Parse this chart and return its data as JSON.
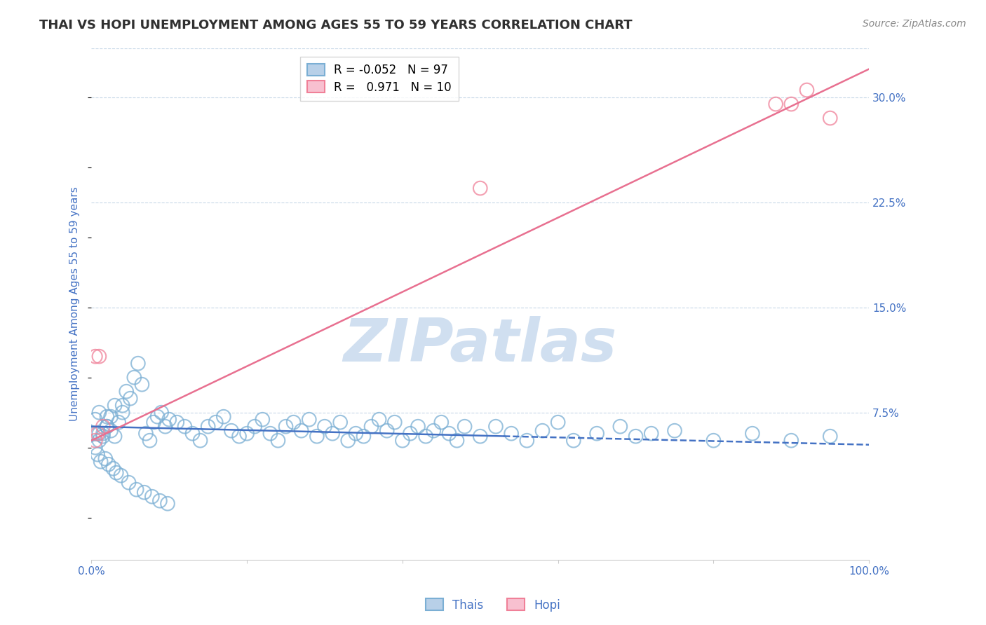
{
  "title": "THAI VS HOPI UNEMPLOYMENT AMONG AGES 55 TO 59 YEARS CORRELATION CHART",
  "source": "Source: ZipAtlas.com",
  "ylabel": "Unemployment Among Ages 55 to 59 years",
  "xlim": [
    0,
    1.0
  ],
  "ylim": [
    -0.03,
    0.335
  ],
  "yticks": [
    0.0,
    0.075,
    0.15,
    0.225,
    0.3
  ],
  "ytick_labels": [
    "",
    "7.5%",
    "15.0%",
    "22.5%",
    "30.0%"
  ],
  "xtick_positions": [
    0.0,
    0.2,
    0.4,
    0.6,
    0.8,
    1.0
  ],
  "xtick_labels": [
    "0.0%",
    "",
    "",
    "",
    "",
    "100.0%"
  ],
  "legend_entries": [
    {
      "label": "Thais",
      "R": "-0.052",
      "N": "97"
    },
    {
      "label": "Hopi",
      "R": "0.971",
      "N": "10"
    }
  ],
  "thai_face_color": "#b8d0e8",
  "thai_edge_color": "#7bafd4",
  "hopi_face_color": "#f8c0d0",
  "hopi_edge_color": "#f08098",
  "thai_line_color": "#4472c4",
  "hopi_line_color": "#e87090",
  "background_color": "#ffffff",
  "grid_color": "#c8d8e8",
  "title_color": "#303030",
  "axis_label_color": "#4472c4",
  "tick_color": "#4472c4",
  "watermark_color": "#d0dff0",
  "thai_scatter_x": [
    0.01,
    0.02,
    0.01,
    0.005,
    0.015,
    0.025,
    0.03,
    0.02,
    0.01,
    0.005,
    0.04,
    0.03,
    0.02,
    0.015,
    0.025,
    0.035,
    0.04,
    0.045,
    0.05,
    0.055,
    0.06,
    0.065,
    0.07,
    0.075,
    0.08,
    0.085,
    0.09,
    0.095,
    0.1,
    0.11,
    0.12,
    0.13,
    0.14,
    0.15,
    0.16,
    0.17,
    0.18,
    0.19,
    0.2,
    0.21,
    0.22,
    0.23,
    0.24,
    0.25,
    0.26,
    0.27,
    0.28,
    0.29,
    0.3,
    0.31,
    0.32,
    0.33,
    0.34,
    0.35,
    0.36,
    0.37,
    0.38,
    0.39,
    0.4,
    0.41,
    0.42,
    0.43,
    0.44,
    0.45,
    0.46,
    0.47,
    0.48,
    0.5,
    0.52,
    0.54,
    0.56,
    0.58,
    0.6,
    0.62,
    0.65,
    0.68,
    0.7,
    0.72,
    0.75,
    0.8,
    0.85,
    0.9,
    0.95,
    0.005,
    0.008,
    0.012,
    0.018,
    0.022,
    0.028,
    0.032,
    0.038,
    0.048,
    0.058,
    0.068,
    0.078,
    0.088,
    0.098
  ],
  "thai_scatter_y": [
    0.06,
    0.065,
    0.055,
    0.07,
    0.058,
    0.062,
    0.058,
    0.072,
    0.075,
    0.06,
    0.075,
    0.08,
    0.065,
    0.06,
    0.072,
    0.068,
    0.08,
    0.09,
    0.085,
    0.1,
    0.11,
    0.095,
    0.06,
    0.055,
    0.068,
    0.072,
    0.075,
    0.065,
    0.07,
    0.068,
    0.065,
    0.06,
    0.055,
    0.065,
    0.068,
    0.072,
    0.062,
    0.058,
    0.06,
    0.065,
    0.07,
    0.06,
    0.055,
    0.065,
    0.068,
    0.062,
    0.07,
    0.058,
    0.065,
    0.06,
    0.068,
    0.055,
    0.06,
    0.058,
    0.065,
    0.07,
    0.062,
    0.068,
    0.055,
    0.06,
    0.065,
    0.058,
    0.062,
    0.068,
    0.06,
    0.055,
    0.065,
    0.058,
    0.065,
    0.06,
    0.055,
    0.062,
    0.068,
    0.055,
    0.06,
    0.065,
    0.058,
    0.06,
    0.062,
    0.055,
    0.06,
    0.055,
    0.058,
    0.05,
    0.045,
    0.04,
    0.042,
    0.038,
    0.035,
    0.032,
    0.03,
    0.025,
    0.02,
    0.018,
    0.015,
    0.012,
    0.01
  ],
  "hopi_scatter_x": [
    0.005,
    0.01,
    0.015,
    0.5,
    0.88,
    0.9,
    0.92,
    0.95,
    0.005,
    0.008
  ],
  "hopi_scatter_y": [
    0.115,
    0.115,
    0.065,
    0.235,
    0.295,
    0.295,
    0.305,
    0.285,
    0.055,
    0.06
  ],
  "thai_trendline_x0": 0.0,
  "thai_trendline_x1": 1.0,
  "thai_trendline_y0": 0.065,
  "thai_trendline_y1": 0.052,
  "thai_trendline_split": 0.53,
  "hopi_trendline_x0": 0.0,
  "hopi_trendline_x1": 1.0,
  "hopi_trendline_y0": 0.055,
  "hopi_trendline_y1": 0.32
}
